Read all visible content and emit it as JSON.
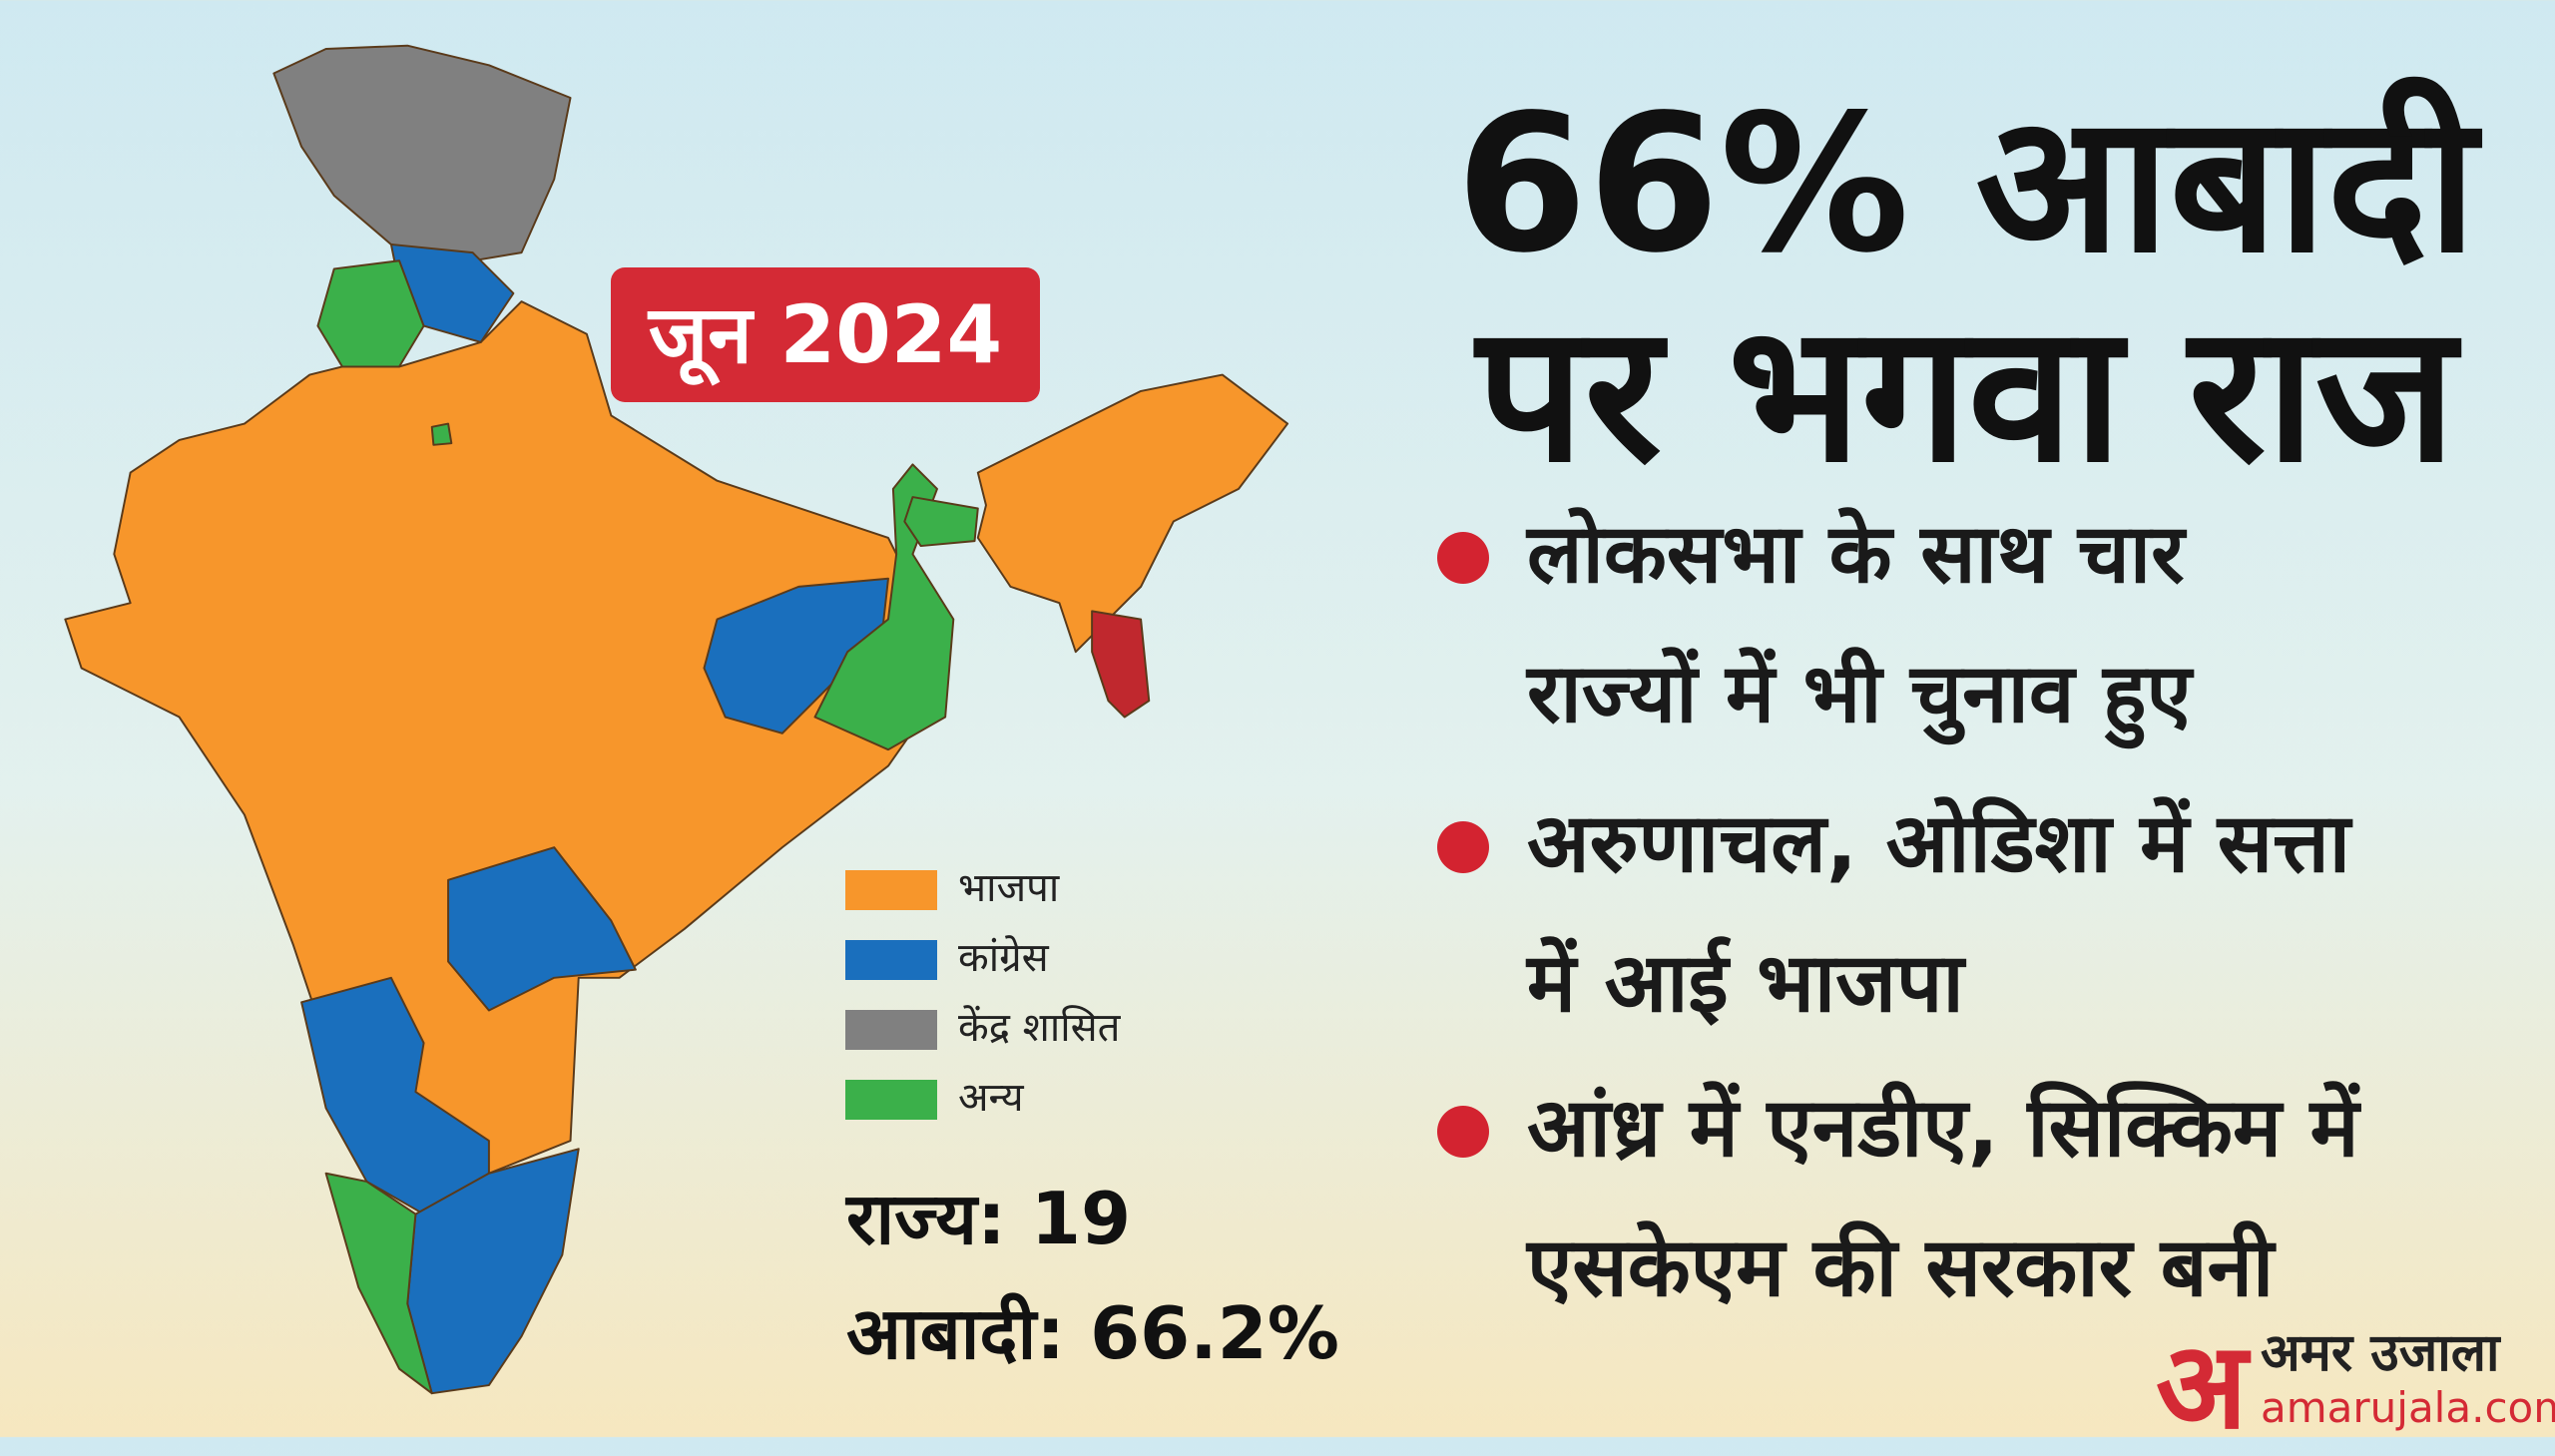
{
  "badge": "जून 2024",
  "title": {
    "line1": "66% आबादी",
    "line2": "पर भगवा राज"
  },
  "bullets": [
    {
      "lines": [
        "लोकसभा के साथ चार",
        "राज्यों में भी चुनाव हुए"
      ]
    },
    {
      "lines": [
        "अरुणाचल, ओडिशा में सत्ता",
        "में आई भाजपा"
      ]
    },
    {
      "lines": [
        "आंध्र में एनडीए, सिक्किम में",
        "एसकेएम की सरकार बनी"
      ]
    }
  ],
  "legend": [
    {
      "label": "भाजपा",
      "color": "#f7962b"
    },
    {
      "label": "कांग्रेस",
      "color": "#1a6fbd"
    },
    {
      "label": "केंद्र शासित",
      "color": "#808080"
    },
    {
      "label": "अन्य",
      "color": "#3bb04a"
    }
  ],
  "stats": {
    "states": "राज्य: 19",
    "population": "आबादी: 66.2%"
  },
  "logo": {
    "mark": "अ",
    "name": "अमर उजाला",
    "site": "amarujala.com"
  }
}
